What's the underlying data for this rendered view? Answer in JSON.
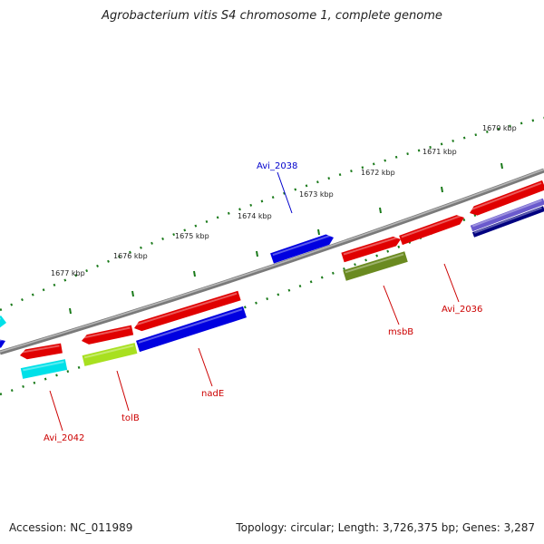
{
  "title": "Agrobacterium vitis S4 chromosome 1, complete genome",
  "footer": {
    "accession": "Accession: NC_011989",
    "summary": "Topology: circular; Length: 3,726,375 bp; Genes: 3,287"
  },
  "colors": {
    "backbone": "#7a7a7a",
    "tick": "#1a7a1a",
    "gene_red": "#e00000",
    "gene_blue": "#0000e0",
    "gene_cyan": "#00e0e8",
    "gene_lime": "#a8e020",
    "gene_olive": "#6a8a20",
    "gene_navy": "#000080",
    "gene_slate": "#6a5acd",
    "label_red": "#cc0000",
    "label_blue": "#0000cc"
  },
  "kbp_labels": [
    "1670 kbp",
    "1671 kbp",
    "1672 kbp",
    "1673 kbp",
    "1674 kbp",
    "1675 kbp",
    "1676 kbp",
    "1677 kbp"
  ],
  "gene_labels": [
    {
      "name": "Avi_2038",
      "color": "label_blue"
    },
    {
      "name": "msbB",
      "color": "label_red"
    },
    {
      "name": "Avi_2036",
      "color": "label_red"
    },
    {
      "name": "nadE",
      "color": "label_red"
    },
    {
      "name": "tolB",
      "color": "label_red"
    },
    {
      "name": "Avi_2042",
      "color": "label_red"
    }
  ]
}
